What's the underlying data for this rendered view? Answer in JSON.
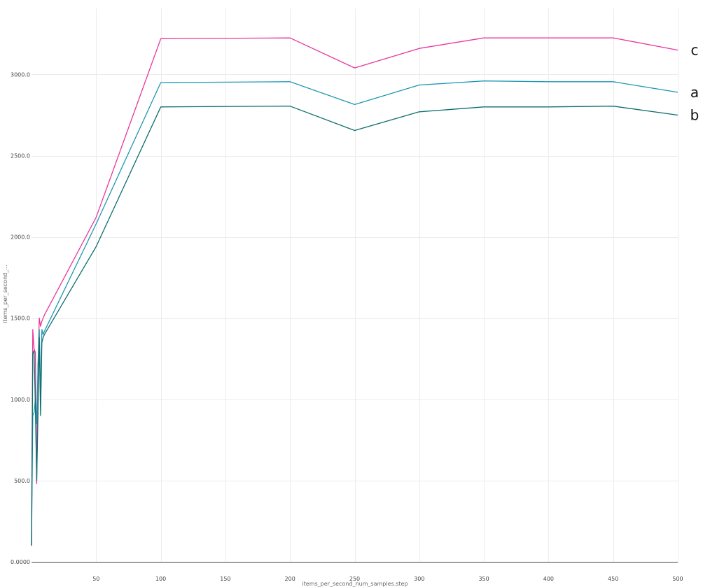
{
  "chart_data": {
    "type": "line",
    "title": "",
    "xlabel": "items_per_second_num_samples.step",
    "ylabel": "items_per_second_...",
    "xlim": [
      0,
      500
    ],
    "ylim": [
      0,
      3300
    ],
    "grid": true,
    "x_ticks": [
      50,
      100,
      150,
      200,
      250,
      300,
      350,
      400,
      450,
      500
    ],
    "x_tick_labels": [
      "50",
      "100",
      "150",
      "200",
      "250",
      "300",
      "350",
      "400",
      "450",
      "500"
    ],
    "y_ticks": [
      0,
      500,
      1000,
      1500,
      2000,
      2500,
      3000
    ],
    "y_tick_labels": [
      "0.0000",
      "500.0",
      "1000.0",
      "1500.0",
      "2000.0",
      "2500.0",
      "3000.0"
    ],
    "series": [
      {
        "name": "c",
        "color": "#e8379b",
        "x": [
          0,
          1,
          2,
          3,
          4,
          5,
          6,
          7,
          8,
          9,
          10,
          50,
          100,
          200,
          250,
          300,
          350,
          400,
          450,
          500
        ],
        "y": [
          100,
          1430,
          1310,
          1290,
          480,
          1200,
          1500,
          1450,
          1480,
          1500,
          1520,
          2120,
          3220,
          3225,
          3040,
          3160,
          3225,
          3225,
          3225,
          3150
        ]
      },
      {
        "name": "a",
        "color": "#1f97b3",
        "x": [
          0,
          1,
          2,
          3,
          4,
          5,
          6,
          7,
          8,
          9,
          10,
          50,
          100,
          200,
          250,
          300,
          350,
          400,
          450,
          500
        ],
        "y": [
          100,
          900,
          920,
          1000,
          850,
          1180,
          1430,
          1010,
          1430,
          1400,
          1420,
          2080,
          2950,
          2955,
          2815,
          2935,
          2960,
          2955,
          2955,
          2890
        ]
      },
      {
        "name": "b",
        "color": "#0d6e6e",
        "x": [
          0,
          1,
          2,
          3,
          4,
          5,
          6,
          7,
          8,
          9,
          10,
          50,
          100,
          200,
          250,
          300,
          350,
          400,
          450,
          500
        ],
        "y": [
          100,
          1280,
          1300,
          960,
          500,
          900,
          1380,
          900,
          1350,
          1380,
          1400,
          1940,
          2800,
          2805,
          2655,
          2770,
          2800,
          2800,
          2805,
          2750
        ]
      }
    ]
  }
}
